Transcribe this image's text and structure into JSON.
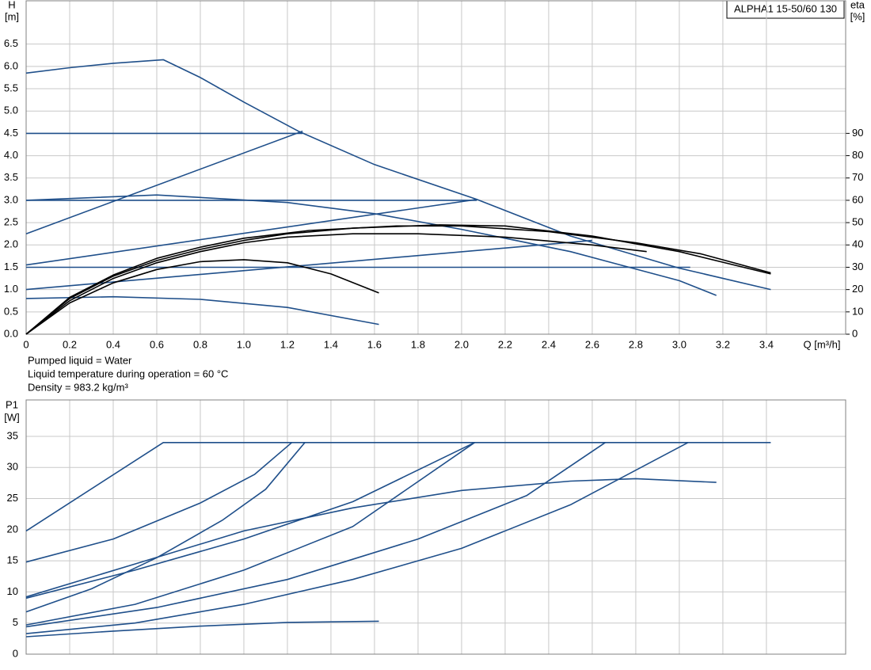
{
  "chart_data": [
    {
      "type": "line",
      "annotation": "ALPHA1 15-50/60 130",
      "y_label": "H",
      "y_unit": "[m]",
      "y2_label": "eta",
      "y2_unit": "[%]",
      "x_label": "Q [m³/h]",
      "notes": [
        "Pumped liquid = Water",
        "Liquid temperature during operation = 60 °C",
        "Density = 983.2 kg/m³"
      ],
      "xlim": [
        0,
        3.764
      ],
      "xticks": [
        0,
        0.2,
        0.4,
        0.6,
        0.8,
        {
          "value": 1,
          "label": "1.0"
        },
        1.2,
        1.4,
        1.6,
        1.8,
        {
          "value": 2,
          "label": "2.0"
        },
        2.2,
        2.4,
        2.6,
        2.8,
        {
          "value": 3,
          "label": "3.0"
        },
        3.2,
        3.4
      ],
      "ylim": [
        0,
        7.47
      ],
      "yticks": [
        {
          "value": 0,
          "label": "0.0"
        },
        0.5,
        {
          "value": 1,
          "label": "1.0"
        },
        1.5,
        {
          "value": 2,
          "label": "2.0"
        },
        2.5,
        {
          "value": 3,
          "label": "3.0"
        },
        3.5,
        {
          "value": 4,
          "label": "4.0"
        },
        4.5,
        {
          "value": 5,
          "label": "5.0"
        },
        5.5,
        {
          "value": 6,
          "label": "6.0"
        },
        6.5
      ],
      "y2lim": [
        0,
        149.4
      ],
      "y2ticks": [
        0,
        10,
        20,
        30,
        40,
        50,
        60,
        70,
        80,
        90
      ],
      "grid": true,
      "series": [
        {
          "color": "#1f4f8a",
          "x": [
            0,
            0.2,
            0.4,
            0.63,
            0.8,
            1.0,
            1.25,
            1.6,
            2.07,
            2.5,
            3.0,
            3.42
          ],
          "values": [
            5.85,
            5.97,
            6.07,
            6.15,
            5.75,
            5.2,
            4.55,
            3.8,
            3.02,
            2.2,
            1.48,
            1.0
          ]
        },
        {
          "color": "#1f4f8a",
          "x": [
            0,
            1.27
          ],
          "values": [
            4.5,
            4.5
          ]
        },
        {
          "color": "#1f4f8a",
          "x": [
            0,
            1.27
          ],
          "values": [
            2.25,
            4.55
          ]
        },
        {
          "color": "#1f4f8a",
          "x": [
            0,
            2.07
          ],
          "values": [
            3.0,
            3.0
          ]
        },
        {
          "color": "#1f4f8a",
          "x": [
            0,
            2.07
          ],
          "values": [
            1.55,
            3.02
          ]
        },
        {
          "color": "#1f4f8a",
          "x": [
            0,
            3.05
          ],
          "values": [
            1.5,
            1.5
          ]
        },
        {
          "color": "#1f4f8a",
          "x": [
            0,
            2.6
          ],
          "values": [
            1.0,
            2.1
          ]
        },
        {
          "color": "#1f4f8a",
          "x": [
            0,
            0.6,
            1.2,
            1.6,
            2.0,
            2.5,
            3.0,
            3.17
          ],
          "values": [
            3.0,
            3.12,
            2.95,
            2.7,
            2.35,
            1.85,
            1.2,
            0.87
          ]
        },
        {
          "color": "#1f4f8a",
          "x": [
            0,
            0.4,
            0.8,
            1.2,
            1.62
          ],
          "values": [
            0.8,
            0.84,
            0.78,
            0.6,
            0.22
          ]
        },
        {
          "color": "#000000",
          "axis": "y2",
          "x": [
            0,
            0.2,
            0.4,
            0.6,
            0.8,
            1.0,
            1.2,
            1.4,
            1.62
          ],
          "values": [
            0,
            14,
            23,
            29,
            32.5,
            33.4,
            32,
            27,
            18.5
          ]
        },
        {
          "color": "#000000",
          "axis": "y2",
          "x": [
            0,
            0.2,
            0.4,
            0.6,
            0.8,
            1.0,
            1.2,
            1.5,
            1.9,
            2.2,
            2.6,
            3.0,
            3.42
          ],
          "values": [
            0,
            16,
            26,
            33,
            38,
            42,
            45,
            47.5,
            49,
            48.5,
            44,
            37,
            27
          ]
        },
        {
          "color": "#000000",
          "axis": "y2",
          "x": [
            0,
            0.2,
            0.4,
            0.6,
            0.8,
            1.0,
            1.2,
            1.5,
            1.8,
            2.2,
            2.6,
            2.85
          ],
          "values": [
            0,
            15,
            25,
            32,
            37,
            41,
            43.5,
            45,
            45,
            43.5,
            40,
            37
          ]
        },
        {
          "color": "#000000",
          "axis": "y2",
          "x": [
            0,
            0.2,
            0.4,
            0.6,
            0.8,
            1.0,
            1.3,
            1.7,
            2.0,
            2.4,
            2.8,
            3.1,
            3.42
          ],
          "values": [
            0,
            16.5,
            26.5,
            34,
            39,
            43,
            46.5,
            48.5,
            48.5,
            46,
            41,
            36,
            27.5
          ]
        }
      ]
    },
    {
      "type": "line",
      "y_label": "P1",
      "y_unit": "[W]",
      "xlim": [
        0,
        3.764
      ],
      "ylim": [
        0,
        40.85
      ],
      "yticks": [
        0,
        5,
        10,
        15,
        20,
        25,
        30,
        35
      ],
      "grid": true,
      "series": [
        {
          "color": "#1f4f8a",
          "x": [
            0,
            0.63,
            3.42
          ],
          "values": [
            19.8,
            34,
            34
          ]
        },
        {
          "color": "#1f4f8a",
          "x": [
            0,
            0.4,
            0.8,
            1.05,
            1.22
          ],
          "values": [
            14.8,
            18.5,
            24.3,
            28.9,
            34
          ]
        },
        {
          "color": "#1f4f8a",
          "x": [
            0,
            0.3,
            0.6,
            0.9,
            1.1,
            1.28
          ],
          "values": [
            6.8,
            10.5,
            15.5,
            21.5,
            26.5,
            34
          ]
        },
        {
          "color": "#1f4f8a",
          "x": [
            0,
            0.5,
            1.0,
            1.5,
            2.06
          ],
          "values": [
            9,
            13.5,
            18.5,
            24.5,
            34
          ]
        },
        {
          "color": "#1f4f8a",
          "x": [
            0,
            0.5,
            1.0,
            1.5,
            2.06
          ],
          "values": [
            4.7,
            8,
            13.5,
            20.5,
            34
          ]
        },
        {
          "color": "#1f4f8a",
          "x": [
            0,
            0.6,
            1.2,
            1.8,
            2.3,
            2.66
          ],
          "values": [
            4.4,
            7.5,
            12,
            18.5,
            25.5,
            34
          ]
        },
        {
          "color": "#1f4f8a",
          "x": [
            0,
            0.5,
            1.0,
            1.5,
            2.0,
            2.5,
            3.04
          ],
          "values": [
            3.3,
            5,
            8,
            12,
            17,
            24,
            34
          ]
        },
        {
          "color": "#1f4f8a",
          "x": [
            0,
            0.5,
            1.0,
            1.5,
            2.0,
            2.5,
            2.8,
            3.17
          ],
          "values": [
            9.2,
            14.5,
            19.8,
            23.5,
            26.3,
            27.8,
            28.2,
            27.6
          ]
        },
        {
          "color": "#1f4f8a",
          "x": [
            0,
            0.4,
            0.8,
            1.2,
            1.62
          ],
          "values": [
            2.8,
            3.7,
            4.5,
            5.1,
            5.3
          ]
        }
      ]
    }
  ]
}
